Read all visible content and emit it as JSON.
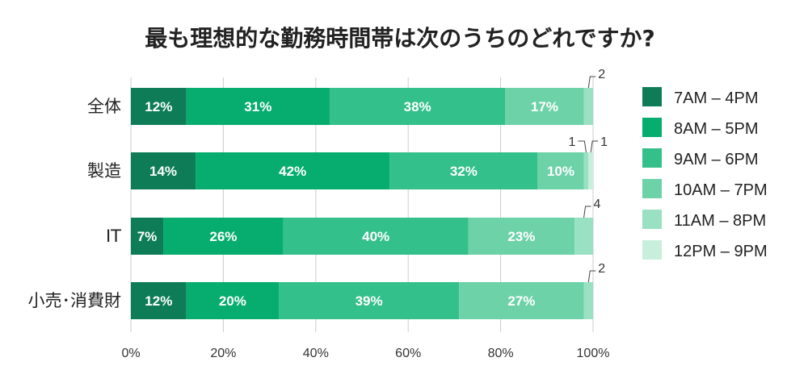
{
  "chart_data": {
    "type": "bar",
    "orientation": "horizontal",
    "stacked": true,
    "title": "最も理想的な勤務時間帯は次のうちのどれですか?",
    "categories": [
      "全体",
      "製造",
      "IT",
      "小売･消費財"
    ],
    "xlim": [
      0,
      100
    ],
    "x_ticks": [
      "0%",
      "20%",
      "40%",
      "60%",
      "80%",
      "100%"
    ],
    "grid": true,
    "legend_position": "right",
    "series": [
      {
        "name": "7AM – 4PM",
        "color": "#0e7d57",
        "values": [
          12,
          14,
          7,
          12
        ]
      },
      {
        "name": "8AM – 5PM",
        "color": "#07ad6e",
        "values": [
          31,
          42,
          26,
          20
        ]
      },
      {
        "name": "9AM – 6PM",
        "color": "#34c08a",
        "values": [
          38,
          32,
          40,
          39
        ]
      },
      {
        "name": "10AM – 7PM",
        "color": "#6ed2a8",
        "values": [
          17,
          10,
          23,
          27
        ]
      },
      {
        "name": "11AM – 8PM",
        "color": "#9ae0c2",
        "values": [
          2,
          1,
          4,
          2
        ]
      },
      {
        "name": "12PM – 9PM",
        "color": "#c8efdc",
        "values": [
          0,
          1,
          0,
          0
        ]
      }
    ],
    "labels": [
      [
        "12%",
        "31%",
        "38%",
        "17%",
        "2",
        ""
      ],
      [
        "14%",
        "42%",
        "32%",
        "10%",
        "1",
        "1"
      ],
      [
        "7%",
        "26%",
        "40%",
        "23%",
        "4",
        ""
      ],
      [
        "12%",
        "20%",
        "39%",
        "27%",
        "2",
        ""
      ]
    ],
    "small_label_series_from": 4
  }
}
